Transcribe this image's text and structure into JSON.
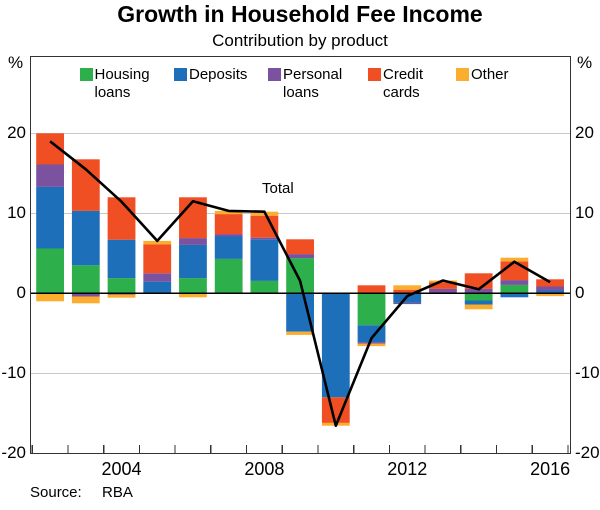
{
  "title": "Growth in Household Fee Income",
  "subtitle": "Contribution by product",
  "annotation": {
    "total_label": "Total"
  },
  "source": {
    "label": "Source:",
    "value": "RBA"
  },
  "axis": {
    "unit_left": "%",
    "unit_right": "%",
    "yticks": [
      20,
      10,
      0,
      -10,
      -20
    ],
    "xtick_labels": [
      "2004",
      "2008",
      "2012",
      "2016"
    ]
  },
  "legend": [
    {
      "key": "housing",
      "line1": "Housing",
      "line2": "loans"
    },
    {
      "key": "deposits",
      "line1": "Deposits",
      "line2": ""
    },
    {
      "key": "personal",
      "line1": "Personal",
      "line2": "loans"
    },
    {
      "key": "credit",
      "line1": "Credit",
      "line2": "cards"
    },
    {
      "key": "other",
      "line1": "Other",
      "line2": ""
    }
  ],
  "colors": {
    "housing": "#2DB04B",
    "deposits": "#1E6FB9",
    "personal": "#7A52A0",
    "credit": "#F04F23",
    "other": "#FBAE2E",
    "total_line": "#000000",
    "gridline": "#C9C9C9",
    "zero_line": "#000000",
    "frame": "#333333"
  },
  "chart_data": {
    "type": "bar",
    "subtype": "stacked-bar-with-total-line",
    "title": "Growth in Household Fee Income",
    "subtitle": "Contribution by product",
    "ylabel": "%",
    "ylim": [
      -20,
      29.6
    ],
    "ytick_values": [
      20,
      10,
      0,
      -10,
      -20
    ],
    "grid": "horizontal",
    "legend_position": "top-inside",
    "x": [
      2002,
      2003,
      2004,
      2005,
      2006,
      2007,
      2008,
      2009,
      2010,
      2011,
      2012,
      2013,
      2014,
      2015,
      2016
    ],
    "series": [
      {
        "name": "Housing loans",
        "values": [
          5.6,
          3.5,
          1.9,
          0.0,
          1.9,
          4.3,
          1.55,
          4.4,
          0.0,
          -4.0,
          0.0,
          0.0,
          -0.9,
          1.05,
          0.0
        ]
      },
      {
        "name": "Deposits",
        "values": [
          7.7,
          6.8,
          4.8,
          1.45,
          4.15,
          2.8,
          5.2,
          -4.8,
          -13.0,
          -2.1,
          -1.2,
          0.1,
          -0.5,
          -0.5,
          0.35
        ]
      },
      {
        "name": "Personal loans",
        "values": [
          2.8,
          -0.4,
          -0.15,
          1.05,
          0.85,
          0.3,
          0.2,
          0.5,
          0.0,
          -0.2,
          -0.15,
          0.45,
          0.55,
          0.6,
          0.5
        ]
      },
      {
        "name": "Credit cards",
        "values": [
          3.9,
          6.45,
          5.3,
          3.6,
          5.1,
          2.5,
          2.75,
          1.85,
          -3.2,
          1.0,
          0.45,
          0.8,
          1.95,
          2.35,
          0.9
        ]
      },
      {
        "name": "Other",
        "values": [
          -1.0,
          -0.85,
          -0.4,
          0.45,
          -0.5,
          0.4,
          0.5,
          -0.4,
          -0.35,
          -0.3,
          0.55,
          0.25,
          -0.6,
          0.45,
          -0.35
        ]
      }
    ],
    "total_line": {
      "name": "Total",
      "values": [
        19.0,
        15.5,
        11.45,
        6.55,
        11.5,
        10.3,
        10.2,
        1.55,
        -16.55,
        -5.6,
        -0.35,
        1.6,
        0.5,
        3.95,
        1.4
      ]
    }
  }
}
